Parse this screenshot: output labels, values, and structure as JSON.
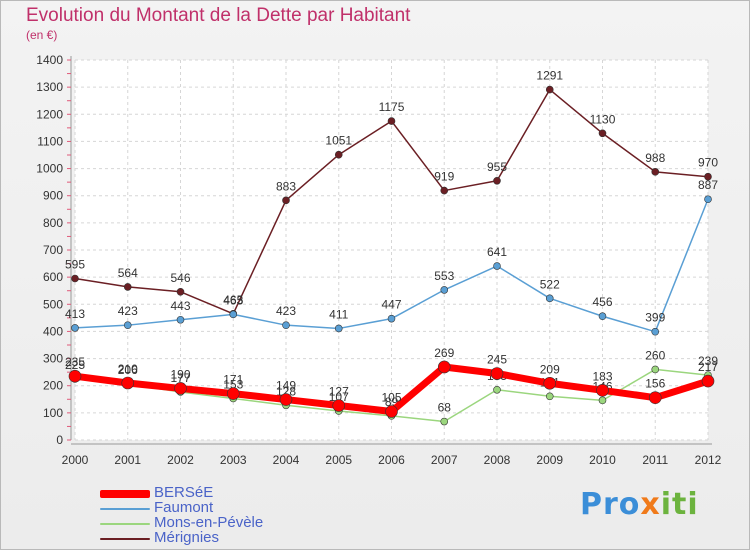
{
  "title": "Evolution du Montant de la Dette par Habitant",
  "unit_label": "(en €)",
  "logo": {
    "part1": "Pro",
    "part2": "x",
    "part3": "iti"
  },
  "chart_data": {
    "type": "line",
    "x": [
      "2000",
      "2001",
      "2002",
      "2003",
      "2004",
      "2005",
      "2006",
      "2007",
      "2008",
      "2009",
      "2010",
      "2011",
      "2012"
    ],
    "ylim": [
      0,
      1400
    ],
    "yticks": [
      0,
      100,
      200,
      300,
      400,
      500,
      600,
      700,
      800,
      900,
      1000,
      1100,
      1200,
      1300,
      1400
    ],
    "grid": true,
    "legend_position": "bottom-left",
    "series": [
      {
        "name": "Mérignies",
        "color": "#6b1f24",
        "stroke": 1.5,
        "values": [
          595,
          564,
          546,
          465,
          883,
          1051,
          1175,
          919,
          955,
          1291,
          1130,
          988,
          970
        ],
        "labels": [
          "595",
          "564",
          "546",
          "465",
          "883",
          "1051",
          "1175",
          "919",
          "955",
          "1291",
          "1130",
          "988",
          "970"
        ]
      },
      {
        "name": "Faumont",
        "color": "#5a9fd4",
        "stroke": 1.5,
        "values": [
          413,
          423,
          443,
          463,
          423,
          411,
          447,
          553,
          641,
          522,
          456,
          399,
          887
        ],
        "labels": [
          "413",
          "423",
          "443",
          "463",
          "423",
          "411",
          "447",
          "553",
          "641",
          "522",
          "456",
          "399",
          "887"
        ]
      },
      {
        "name": "Mons-en-Pévèle",
        "color": "#9bd67e",
        "stroke": 1.5,
        "values": [
          225,
          206,
          177,
          153,
          128,
          107,
          89,
          68,
          185,
          161,
          146,
          260,
          239
        ],
        "labels": [
          "225",
          "206",
          "177",
          "153",
          "128",
          "107",
          "89",
          "68",
          "185",
          "161",
          "146",
          "260",
          "239"
        ]
      },
      {
        "name": "BERSéE",
        "color": "#ff0000",
        "stroke": 7,
        "values": [
          235,
          210,
          190,
          171,
          149,
          127,
          105,
          269,
          245,
          209,
          183,
          156,
          217
        ],
        "labels": [
          "235",
          "210",
          "190",
          "171",
          "149",
          "127",
          "105",
          "269",
          "245",
          "209",
          "183",
          "156",
          "217"
        ]
      }
    ]
  }
}
